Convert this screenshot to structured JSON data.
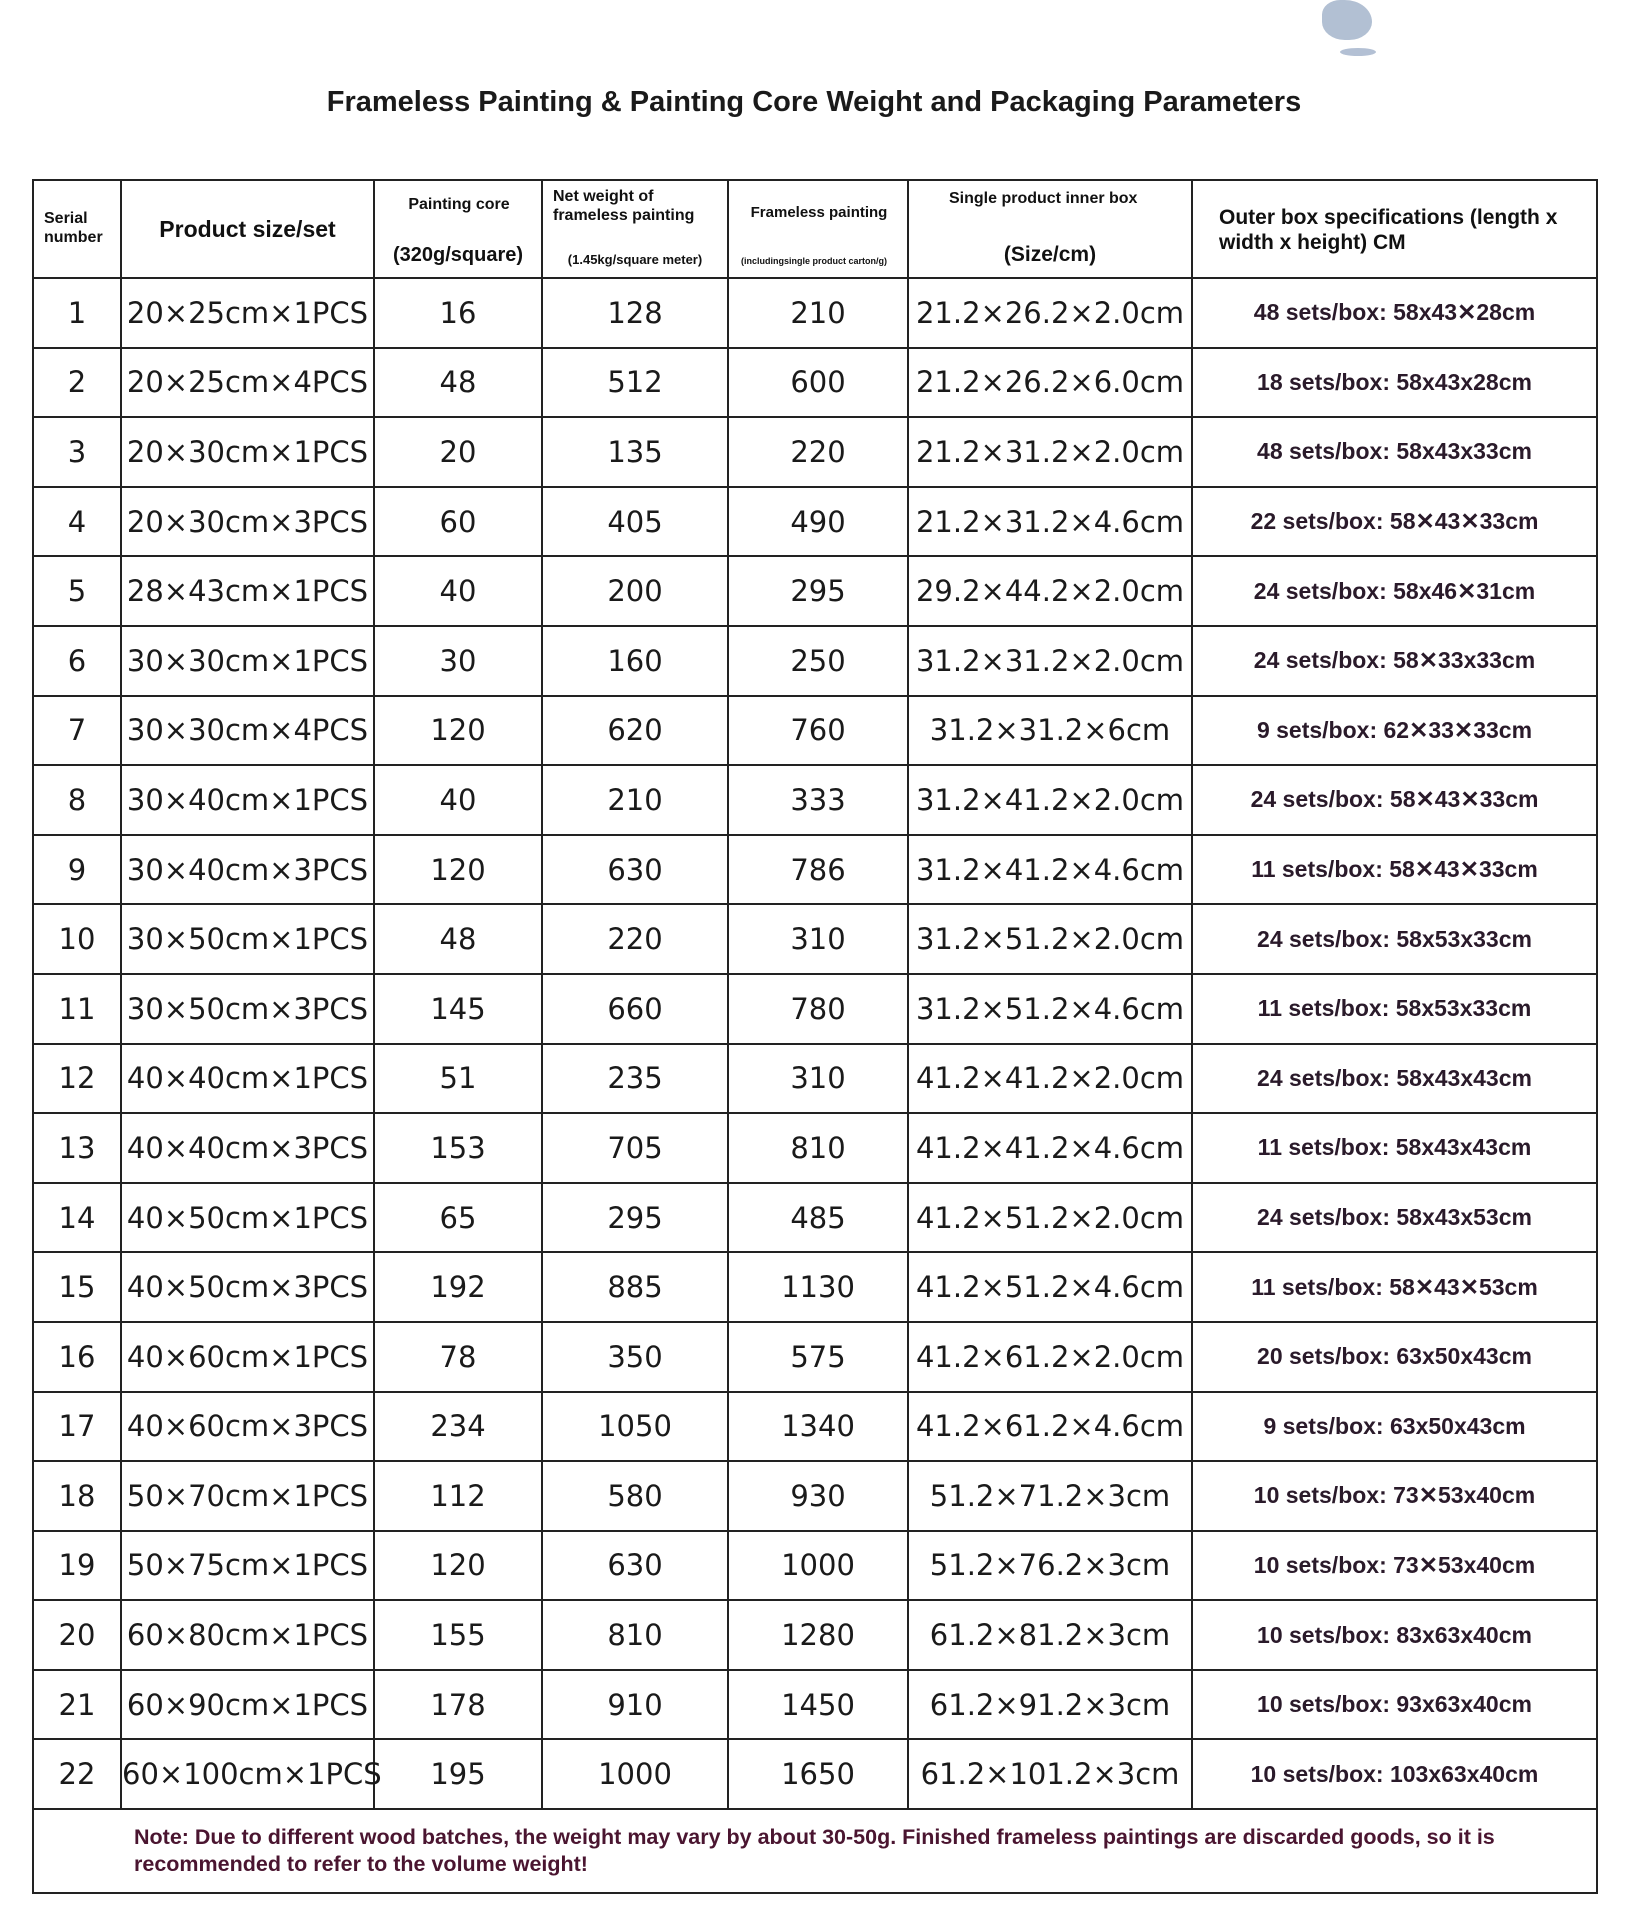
{
  "title": "Frameless Painting & Painting Core Weight and Packaging Parameters",
  "headers": {
    "serial": "Serial number",
    "size": "Product size/set",
    "core": "Painting core",
    "core_unit": "(320g/square)",
    "net": "Net weight of frameless painting",
    "net_unit": "(1.45kg/square meter)",
    "frameless": "Frameless painting",
    "frameless_unit": "(includingsingle product carton/g)",
    "inner": "Single product inner box",
    "inner_unit": "(Size/cm)",
    "outer": "Outer box specifications (length x width x height) CM"
  },
  "rows": [
    [
      "1",
      "20×25cm×1PCS",
      "16",
      "128",
      "210",
      "21.2×26.2×2.0cm",
      "48 sets/box: 58x43✕28cm"
    ],
    [
      "2",
      "20×25cm×4PCS",
      "48",
      "512",
      "600",
      "21.2×26.2×6.0cm",
      "18 sets/box: 58x43x28cm"
    ],
    [
      "3",
      "20×30cm×1PCS",
      "20",
      "135",
      "220",
      "21.2×31.2×2.0cm",
      "48 sets/box: 58x43x33cm"
    ],
    [
      "4",
      "20×30cm×3PCS",
      "60",
      "405",
      "490",
      "21.2×31.2×4.6cm",
      "22 sets/box: 58✕43✕33cm"
    ],
    [
      "5",
      "28×43cm×1PCS",
      "40",
      "200",
      "295",
      "29.2×44.2×2.0cm",
      "24 sets/box: 58x46✕31cm"
    ],
    [
      "6",
      "30×30cm×1PCS",
      "30",
      "160",
      "250",
      "31.2×31.2×2.0cm",
      "24 sets/box: 58✕33x33cm"
    ],
    [
      "7",
      "30×30cm×4PCS",
      "120",
      "620",
      "760",
      "31.2×31.2×6cm",
      "9 sets/box: 62✕33✕33cm"
    ],
    [
      "8",
      "30×40cm×1PCS",
      "40",
      "210",
      "333",
      "31.2×41.2×2.0cm",
      "24 sets/box: 58✕43✕33cm"
    ],
    [
      "9",
      "30×40cm×3PCS",
      "120",
      "630",
      "786",
      "31.2×41.2×4.6cm",
      "11 sets/box: 58✕43✕33cm"
    ],
    [
      "10",
      "30×50cm×1PCS",
      "48",
      "220",
      "310",
      "31.2×51.2×2.0cm",
      "24 sets/box: 58x53x33cm"
    ],
    [
      "11",
      "30×50cm×3PCS",
      "145",
      "660",
      "780",
      "31.2×51.2×4.6cm",
      "11 sets/box: 58x53x33cm"
    ],
    [
      "12",
      "40×40cm×1PCS",
      "51",
      "235",
      "310",
      "41.2×41.2×2.0cm",
      "24 sets/box: 58x43x43cm"
    ],
    [
      "13",
      "40×40cm×3PCS",
      "153",
      "705",
      "810",
      "41.2×41.2×4.6cm",
      "11 sets/box: 58x43x43cm"
    ],
    [
      "14",
      "40×50cm×1PCS",
      "65",
      "295",
      "485",
      "41.2×51.2×2.0cm",
      "24 sets/box: 58x43x53cm"
    ],
    [
      "15",
      "40×50cm×3PCS",
      "192",
      "885",
      "1130",
      "41.2×51.2×4.6cm",
      "11 sets/box: 58✕43✕53cm"
    ],
    [
      "16",
      "40×60cm×1PCS",
      "78",
      "350",
      "575",
      "41.2×61.2×2.0cm",
      "20 sets/box: 63x50x43cm"
    ],
    [
      "17",
      "40×60cm×3PCS",
      "234",
      "1050",
      "1340",
      "41.2×61.2×4.6cm",
      "9 sets/box: 63x50x43cm"
    ],
    [
      "18",
      "50×70cm×1PCS",
      "112",
      "580",
      "930",
      "51.2×71.2×3cm",
      "10 sets/box: 73✕53x40cm"
    ],
    [
      "19",
      "50×75cm×1PCS",
      "120",
      "630",
      "1000",
      "51.2×76.2×3cm",
      "10 sets/box: 73✕53x40cm"
    ],
    [
      "20",
      "60×80cm×1PCS",
      "155",
      "810",
      "1280",
      "61.2×81.2×3cm",
      "10 sets/box: 83x63x40cm"
    ],
    [
      "21",
      "60×90cm×1PCS",
      "178",
      "910",
      "1450",
      "61.2×91.2×3cm",
      "10 sets/box: 93x63x40cm"
    ],
    [
      "22",
      "60×100cm×1PCS",
      "195",
      "1000",
      "1650",
      "61.2×101.2×3cm",
      "10 sets/box: 103x63x40cm"
    ]
  ],
  "note": "Note: Due to different wood batches, the weight may vary by about 30-50g. Finished frameless paintings are discarded goods, so it is recommended to refer to the volume weight!",
  "colors": {
    "note_text": "#4a1530",
    "border": "#222222"
  }
}
